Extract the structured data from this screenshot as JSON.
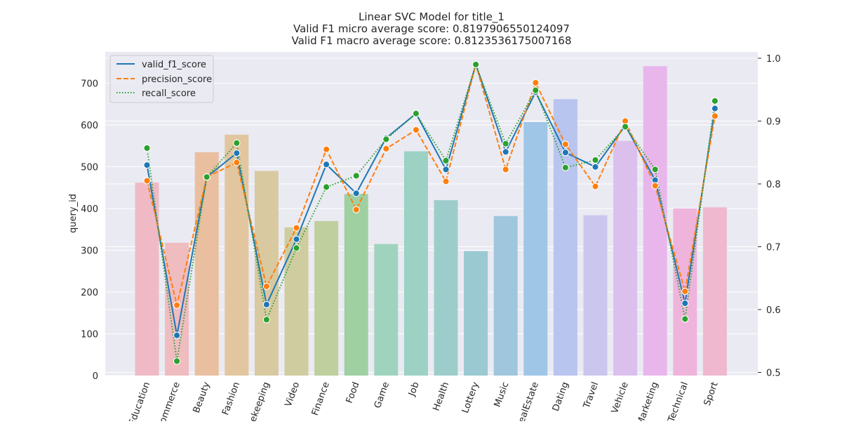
{
  "chart_data": {
    "type": "bar+line",
    "title_lines": [
      "Linear SVC Model for title_1",
      "Valid F1 micro average score: 0.8197906550124097",
      "Valid F1 macro average score: 0.8123536175007168"
    ],
    "ylabel_left": "query_id",
    "ylim_left": [
      0,
      775
    ],
    "ylim_right": [
      0.495,
      1.01
    ],
    "yticks_left": [
      0,
      100,
      200,
      300,
      400,
      500,
      600,
      700
    ],
    "yticks_right": [
      0.5,
      0.6,
      0.7,
      0.8,
      0.9,
      1.0
    ],
    "ytick_labels_right": [
      "0.5",
      "0.6",
      "0.7",
      "0.8",
      "0.9",
      "1.0"
    ],
    "grid": true,
    "legend_position": "top-left",
    "categories": [
      "Education",
      "ECommerce",
      "Beauty",
      "Fashion",
      "Housekeeping",
      "Video",
      "Finance",
      "Food",
      "Game",
      "Job",
      "Health",
      "Lottery",
      "Music",
      "RealEstate",
      "Dating",
      "Travel",
      "Vehicle",
      "Marketing",
      "Technical",
      "Sport"
    ],
    "category_labels_shown": [
      "Education",
      "Commerce",
      "Beauty",
      "Fashion",
      "ekeeping",
      "Video",
      "Finance",
      "Food",
      "Game",
      "Job",
      "Health",
      "Lottery",
      "Music",
      "ealEstate",
      "Dating",
      "Travel",
      "Vehicle",
      "Marketing",
      "Technical",
      "Sport"
    ],
    "bar_values": [
      462,
      318,
      535,
      577,
      490,
      355,
      370,
      435,
      315,
      537,
      420,
      298,
      382,
      607,
      662,
      384,
      562,
      741,
      400,
      403
    ],
    "bar_colors": [
      "#efbac6",
      "#efbcc0",
      "#e9bf9f",
      "#e1c69f",
      "#d8c9a1",
      "#cfcda0",
      "#bfcf9e",
      "#9fd0a2",
      "#9fd3be",
      "#9cd1c4",
      "#9dcdcb",
      "#9ac9d2",
      "#9fc6dd",
      "#9fc6e6",
      "#b8c5ee",
      "#cbc6ee",
      "#dbc0ee",
      "#e9b6ec",
      "#efb4dc",
      "#efb8cf"
    ],
    "series": [
      {
        "name": "valid_f1_score",
        "color": "#1f77b4",
        "dash": "solid",
        "values": [
          0.83,
          0.559,
          0.811,
          0.849,
          0.608,
          0.712,
          0.831,
          0.785,
          0.873,
          0.912,
          0.823,
          0.99,
          0.851,
          0.946,
          0.85,
          0.827,
          0.893,
          0.806,
          0.61,
          0.92
        ]
      },
      {
        "name": "precision_score",
        "color": "#ff7f0e",
        "dash": "dashed",
        "values": [
          0.805,
          0.607,
          0.811,
          0.834,
          0.637,
          0.73,
          0.855,
          0.759,
          0.856,
          0.886,
          0.804,
          0.99,
          0.823,
          0.961,
          0.863,
          0.796,
          0.9,
          0.797,
          0.629,
          0.908
        ]
      },
      {
        "name": "recall_score",
        "color": "#2ca02c",
        "dash": "dotted",
        "values": [
          0.857,
          0.518,
          0.811,
          0.865,
          0.584,
          0.698,
          0.795,
          0.813,
          0.871,
          0.912,
          0.837,
          0.99,
          0.864,
          0.949,
          0.826,
          0.838,
          0.891,
          0.823,
          0.585,
          0.932
        ]
      }
    ]
  }
}
